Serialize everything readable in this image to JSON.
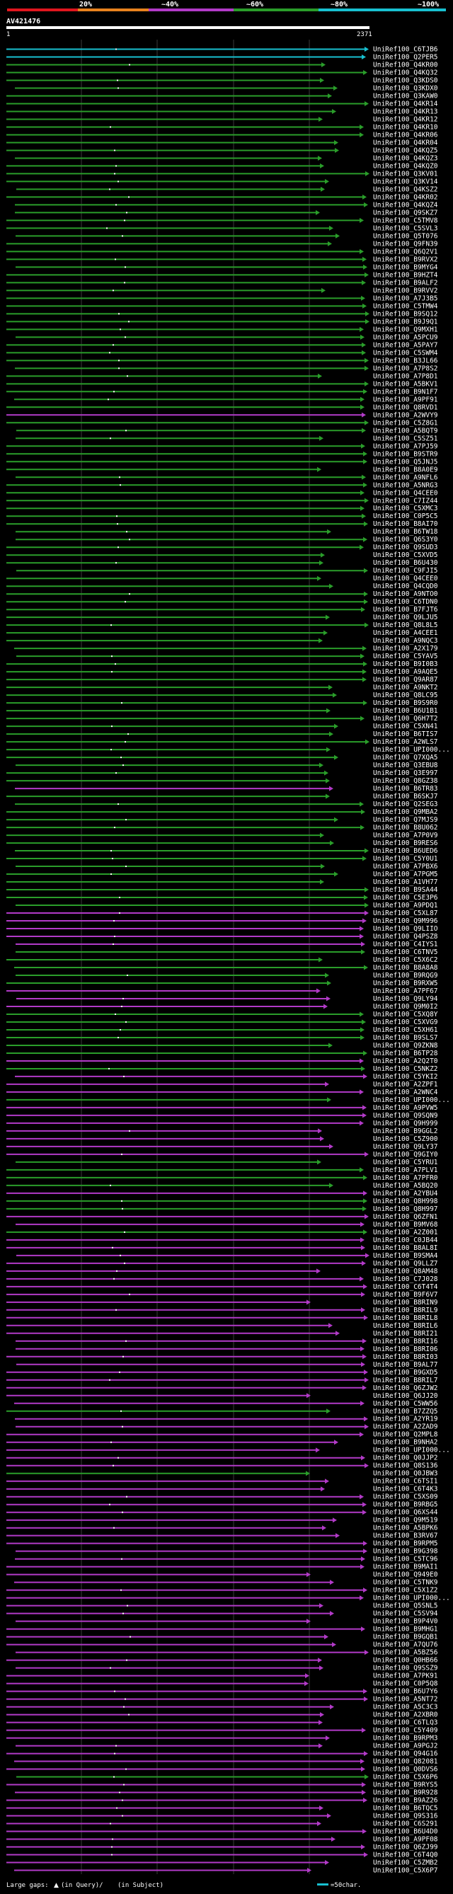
{
  "chart_data": {
    "type": "alignment-graphic",
    "query_id": "AV421476",
    "query_start": "1",
    "query_end": "2371",
    "identity_legend": [
      {
        "label": "20%",
        "color": "#e0161e"
      },
      {
        "label": "~40%",
        "color": "#e8821e"
      },
      {
        "label": "~60%",
        "color": "#b23ac8"
      },
      {
        "label": "~80%",
        "color": "#2a9d2a"
      },
      {
        "label": "~100%",
        "color": "#18c0d0"
      }
    ],
    "footer": {
      "gaps_text": "Large gaps:",
      "gaps_query": "(in Query)/",
      "gaps_subject": "(in Subject)",
      "scale_text": "=50char."
    },
    "hits": [
      {
        "label": "UniRef100_C6TJB6",
        "c": "c"
      },
      {
        "label": "UniRef100_Q2PER5",
        "c": "c"
      },
      {
        "label": "UniRef100_Q4KR00",
        "c": "g"
      },
      {
        "label": "UniRef100_Q4KQ32",
        "c": "g"
      },
      {
        "label": "UniRef100_Q3KDS0",
        "c": "g"
      },
      {
        "label": "UniRef100_Q3KDX0",
        "c": "g"
      },
      {
        "label": "UniRef100_Q3KAW0",
        "c": "g"
      },
      {
        "label": "UniRef100_Q4KR14",
        "c": "g"
      },
      {
        "label": "UniRef100_Q4KR13",
        "c": "g"
      },
      {
        "label": "UniRef100_Q4KR12",
        "c": "g"
      },
      {
        "label": "UniRef100_Q4KR10",
        "c": "g"
      },
      {
        "label": "UniRef100_Q4KR06",
        "c": "g"
      },
      {
        "label": "UniRef100_Q4KR04",
        "c": "g"
      },
      {
        "label": "UniRef100_Q4KQZ5",
        "c": "g"
      },
      {
        "label": "UniRef100_Q4KQZ3",
        "c": "g"
      },
      {
        "label": "UniRef100_Q4KQZ0",
        "c": "g"
      },
      {
        "label": "UniRef100_Q3KV01",
        "c": "g"
      },
      {
        "label": "UniRef100_Q3KV14",
        "c": "g"
      },
      {
        "label": "UniRef100_Q4KSZ2",
        "c": "g"
      },
      {
        "label": "UniRef100_Q4KR02",
        "c": "g"
      },
      {
        "label": "UniRef100_Q4KQZ4",
        "c": "g"
      },
      {
        "label": "UniRef100_Q9SKZ7",
        "c": "g"
      },
      {
        "label": "UniRef100_C5TMV8",
        "c": "g"
      },
      {
        "label": "UniRef100_C5SVL3",
        "c": "g"
      },
      {
        "label": "UniRef100_Q5T076",
        "c": "g"
      },
      {
        "label": "UniRef100_Q9FN39",
        "c": "g"
      },
      {
        "label": "UniRef100_Q6Q2V1",
        "c": "g"
      },
      {
        "label": "UniRef100_B9RVX2",
        "c": "g"
      },
      {
        "label": "UniRef100_B9MYG4",
        "c": "g"
      },
      {
        "label": "UniRef100_B9HZT4",
        "c": "g"
      },
      {
        "label": "UniRef100_B9ALF2",
        "c": "g"
      },
      {
        "label": "UniRef100_B9RVV2",
        "c": "g"
      },
      {
        "label": "UniRef100_A7J3B5",
        "c": "g"
      },
      {
        "label": "UniRef100_C5TMW4",
        "c": "g"
      },
      {
        "label": "UniRef100_B9SQ12",
        "c": "g"
      },
      {
        "label": "UniRef100_B9J9Q1",
        "c": "g"
      },
      {
        "label": "UniRef100_Q9MXH1",
        "c": "g"
      },
      {
        "label": "UniRef100_A5PCU9",
        "c": "g"
      },
      {
        "label": "UniRef100_A5PAY7",
        "c": "g"
      },
      {
        "label": "UniRef100_C5SWM4",
        "c": "g"
      },
      {
        "label": "UniRef100_B3JL66",
        "c": "g"
      },
      {
        "label": "UniRef100_A7P8S2",
        "c": "g"
      },
      {
        "label": "UniRef100_A7P8D1",
        "c": "g"
      },
      {
        "label": "UniRef100_A5BKV1",
        "c": "g"
      },
      {
        "label": "UniRef100_B9N1F7",
        "c": "g"
      },
      {
        "label": "UniRef100_A9PF91",
        "c": "g"
      },
      {
        "label": "UniRef100_Q8RVD1",
        "c": "g"
      },
      {
        "label": "UniRef100_A2WVY9",
        "c": "p"
      },
      {
        "label": "UniRef100_C5Z8G1",
        "c": "g"
      },
      {
        "label": "UniRef100_A5BQT9",
        "c": "g"
      },
      {
        "label": "UniRef100_C5SZ51",
        "c": "g"
      },
      {
        "label": "UniRef100_A7PJ59",
        "c": "g"
      },
      {
        "label": "UniRef100_B9STR9",
        "c": "g"
      },
      {
        "label": "UniRef100_Q5JNJ5",
        "c": "g"
      },
      {
        "label": "UniRef100_B8A0E9",
        "c": "g"
      },
      {
        "label": "UniRef100_A9NFL6",
        "c": "g"
      },
      {
        "label": "UniRef100_A5NRG3",
        "c": "g"
      },
      {
        "label": "UniRef100_Q4CEE0",
        "c": "g"
      },
      {
        "label": "UniRef100_C7IZ44",
        "c": "g"
      },
      {
        "label": "UniRef100_C5XMC3",
        "c": "g"
      },
      {
        "label": "UniRef100_C0P5C5",
        "c": "g"
      },
      {
        "label": "UniRef100_B8AI70",
        "c": "g"
      },
      {
        "label": "UniRef100_B6TW18",
        "c": "g"
      },
      {
        "label": "UniRef100_Q6S3Y0",
        "c": "g"
      },
      {
        "label": "UniRef100_Q9SUD3",
        "c": "g"
      },
      {
        "label": "UniRef100_C5XVD5",
        "c": "g"
      },
      {
        "label": "UniRef100_B6U430",
        "c": "g"
      },
      {
        "label": "UniRef100_C9FJI5",
        "c": "g"
      },
      {
        "label": "UniRef100_Q4CEE0",
        "c": "g"
      },
      {
        "label": "UniRef100_Q4CQD0",
        "c": "g"
      },
      {
        "label": "UniRef100_A9NTO0",
        "c": "g"
      },
      {
        "label": "UniRef100_C6TDN0",
        "c": "g"
      },
      {
        "label": "UniRef100_B7FJT6",
        "c": "g"
      },
      {
        "label": "UniRef100_Q9LJU5",
        "c": "g"
      },
      {
        "label": "UniRef100_Q8L8L5",
        "c": "g"
      },
      {
        "label": "UniRef100_A4CEE1",
        "c": "g"
      },
      {
        "label": "UniRef100_A9NQC3",
        "c": "g"
      },
      {
        "label": "UniRef100_A2X179",
        "c": "g"
      },
      {
        "label": "UniRef100_C5YAV5",
        "c": "g"
      },
      {
        "label": "UniRef100_B9I0B3",
        "c": "g"
      },
      {
        "label": "UniRef100_A9AQE5",
        "c": "g"
      },
      {
        "label": "UniRef100_Q9AR87",
        "c": "g"
      },
      {
        "label": "UniRef100_A9NKT2",
        "c": "g"
      },
      {
        "label": "UniRef100_Q8LC95",
        "c": "g"
      },
      {
        "label": "UniRef100_B9S9R0",
        "c": "g"
      },
      {
        "label": "UniRef100_B6U1B1",
        "c": "g"
      },
      {
        "label": "UniRef100_Q6H7T2",
        "c": "g"
      },
      {
        "label": "UniRef100_C5XN41",
        "c": "g"
      },
      {
        "label": "UniRef100_B6TIS7",
        "c": "g"
      },
      {
        "label": "UniRef100_A2WLS7",
        "c": "g"
      },
      {
        "label": "UniRef100_UPI000...",
        "c": "g"
      },
      {
        "label": "UniRef100_Q7XQA5",
        "c": "g"
      },
      {
        "label": "UniRef100_Q3EBU8",
        "c": "g"
      },
      {
        "label": "UniRef100_Q3E997",
        "c": "g"
      },
      {
        "label": "UniRef100_Q8GZ38",
        "c": "g"
      },
      {
        "label": "UniRef100_B6TR83",
        "c": "p"
      },
      {
        "label": "UniRef100_B6SKJ7",
        "c": "g"
      },
      {
        "label": "UniRef100_Q2SEG3",
        "c": "g"
      },
      {
        "label": "UniRef100_Q9MBA2",
        "c": "g"
      },
      {
        "label": "UniRef100_Q7MJS9",
        "c": "g"
      },
      {
        "label": "UniRef100_B8U062",
        "c": "g"
      },
      {
        "label": "UniRef100_A7P0V9",
        "c": "g"
      },
      {
        "label": "UniRef100_B9RES6",
        "c": "g"
      },
      {
        "label": "UniRef100_B6UED6",
        "c": "g"
      },
      {
        "label": "UniRef100_C5Y0U1",
        "c": "g"
      },
      {
        "label": "UniRef100_A7PBX6",
        "c": "g"
      },
      {
        "label": "UniRef100_A7PGM5",
        "c": "g"
      },
      {
        "label": "UniRef100_A1VH77",
        "c": "g"
      },
      {
        "label": "UniRef100_B9SA44",
        "c": "g"
      },
      {
        "label": "UniRef100_C5E3P6",
        "c": "g"
      },
      {
        "label": "UniRef100_A9PDQ1",
        "c": "g"
      },
      {
        "label": "UniRef100_C5XL87",
        "c": "p"
      },
      {
        "label": "UniRef100_Q9M996",
        "c": "p"
      },
      {
        "label": "UniRef100_Q9LIIO",
        "c": "p"
      },
      {
        "label": "UniRef100_Q4PSZ8",
        "c": "p"
      },
      {
        "label": "UniRef100_C4IYS1",
        "c": "p"
      },
      {
        "label": "UniRef100_C6TNV5",
        "c": "g"
      },
      {
        "label": "UniRef100_C5X6C2",
        "c": "g"
      },
      {
        "label": "UniRef100_B8A8A8",
        "c": "g"
      },
      {
        "label": "UniRef100_B9RQG9",
        "c": "g"
      },
      {
        "label": "UniRef100_B9RXW5",
        "c": "g"
      },
      {
        "label": "UniRef100_A7PF67",
        "c": "p"
      },
      {
        "label": "UniRef100_Q9LY94",
        "c": "p"
      },
      {
        "label": "UniRef100_Q9M0I2",
        "c": "p"
      },
      {
        "label": "UniRef100_C5XQ8Y",
        "c": "g"
      },
      {
        "label": "UniRef100_C5XVG9",
        "c": "g"
      },
      {
        "label": "UniRef100_C5XH61",
        "c": "g"
      },
      {
        "label": "UniRef100_B9SLS7",
        "c": "g"
      },
      {
        "label": "UniRef100_Q9ZKN8",
        "c": "g"
      },
      {
        "label": "UniRef100_B6TP28",
        "c": "g"
      },
      {
        "label": "UniRef100_A2Q2T0",
        "c": "p"
      },
      {
        "label": "UniRef100_C5NKZ2",
        "c": "g"
      },
      {
        "label": "UniRef100_C5YKI2",
        "c": "p"
      },
      {
        "label": "UniRef100_A2ZPF1",
        "c": "p"
      },
      {
        "label": "UniRef100_A2WNC4",
        "c": "p"
      },
      {
        "label": "UniRef100_UPI000...",
        "c": "g"
      },
      {
        "label": "UniRef100_A9PVW5",
        "c": "p"
      },
      {
        "label": "UniRef100_Q9SQN9",
        "c": "p"
      },
      {
        "label": "UniRef100_Q9H999",
        "c": "p"
      },
      {
        "label": "UniRef100_B9GGL2",
        "c": "p"
      },
      {
        "label": "UniRef100_C5Z900",
        "c": "p"
      },
      {
        "label": "UniRef100_Q9LY37",
        "c": "p"
      },
      {
        "label": "UniRef100_Q9GIY0",
        "c": "p"
      },
      {
        "label": "UniRef100_C5YRU1",
        "c": "g"
      },
      {
        "label": "UniRef100_A7PLV1",
        "c": "g"
      },
      {
        "label": "UniRef100_A7PFR0",
        "c": "g"
      },
      {
        "label": "UniRef100_A5BQ20",
        "c": "g"
      },
      {
        "label": "UniRef100_A2YBU4",
        "c": "p"
      },
      {
        "label": "UniRef100_Q8H998",
        "c": "g"
      },
      {
        "label": "UniRef100_Q8H997",
        "c": "g"
      },
      {
        "label": "UniRef100_Q6ZFN1",
        "c": "p"
      },
      {
        "label": "UniRef100_B9MV68",
        "c": "p"
      },
      {
        "label": "UniRef100_A2Z001",
        "c": "g"
      },
      {
        "label": "UniRef100_C0JB44",
        "c": "p"
      },
      {
        "label": "UniRef100_B8AL8I",
        "c": "p"
      },
      {
        "label": "UniRef100_B9SMA4",
        "c": "p"
      },
      {
        "label": "UniRef100_Q9LLZ7",
        "c": "p"
      },
      {
        "label": "UniRef100_Q8AM48",
        "c": "p"
      },
      {
        "label": "UniRef100_C7J028",
        "c": "p"
      },
      {
        "label": "UniRef100_C6T4T4",
        "c": "p"
      },
      {
        "label": "UniRef100_B9F6V7",
        "c": "p"
      },
      {
        "label": "UniRef100_B8RIN9",
        "c": "p"
      },
      {
        "label": "UniRef100_B8RIL9",
        "c": "p"
      },
      {
        "label": "UniRef100_B8RIL8",
        "c": "p"
      },
      {
        "label": "UniRef100_B8RIL6",
        "c": "p"
      },
      {
        "label": "UniRef100_B8RI21",
        "c": "p"
      },
      {
        "label": "UniRef100_B8RI16",
        "c": "p"
      },
      {
        "label": "UniRef100_B8RI06",
        "c": "p"
      },
      {
        "label": "UniRef100_B8RI03",
        "c": "p"
      },
      {
        "label": "UniRef100_B9AL77",
        "c": "p"
      },
      {
        "label": "UniRef100_B9GXD5",
        "c": "p"
      },
      {
        "label": "UniRef100_B8RIL7",
        "c": "p"
      },
      {
        "label": "UniRef100_Q6ZJW2",
        "c": "p"
      },
      {
        "label": "UniRef100_Q6JJ20",
        "c": "p"
      },
      {
        "label": "UniRef100_C5WW56",
        "c": "p"
      },
      {
        "label": "UniRef100_B7ZZQ5",
        "c": "g"
      },
      {
        "label": "UniRef100_A2YR19",
        "c": "p"
      },
      {
        "label": "UniRef100_A2ZAD9",
        "c": "p"
      },
      {
        "label": "UniRef100_Q2MPL8",
        "c": "p"
      },
      {
        "label": "UniRef100_B9NHA2",
        "c": "p"
      },
      {
        "label": "UniRef100_UPI000...",
        "c": "p"
      },
      {
        "label": "UniRef100_Q0JJP2",
        "c": "p"
      },
      {
        "label": "UniRef100_Q8S136",
        "c": "p"
      },
      {
        "label": "UniRef100_Q0JBW3",
        "c": "g"
      },
      {
        "label": "UniRef100_C6TSI1",
        "c": "p"
      },
      {
        "label": "UniRef100_C6T4K3",
        "c": "p"
      },
      {
        "label": "UniRef100_C5XS09",
        "c": "p"
      },
      {
        "label": "UniRef100_B9RBG5",
        "c": "p"
      },
      {
        "label": "UniRef100_Q6XS44",
        "c": "p"
      },
      {
        "label": "UniRef100_Q9M519",
        "c": "p"
      },
      {
        "label": "UniRef100_A5BPK6",
        "c": "p"
      },
      {
        "label": "UniRef100_B3RV67",
        "c": "p"
      },
      {
        "label": "UniRef100_B9RPM5",
        "c": "p"
      },
      {
        "label": "UniRef100_B9G398",
        "c": "p"
      },
      {
        "label": "UniRef100_C5TC96",
        "c": "p"
      },
      {
        "label": "UniRef100_B9MAI1",
        "c": "p"
      },
      {
        "label": "UniRef100_Q949E0",
        "c": "p"
      },
      {
        "label": "UniRef100_C5TNK9",
        "c": "p"
      },
      {
        "label": "UniRef100_C5X1Z2",
        "c": "p"
      },
      {
        "label": "UniRef100_UPI000...",
        "c": "p"
      },
      {
        "label": "UniRef100_Q5SNL5",
        "c": "p"
      },
      {
        "label": "UniRef100_C5SV94",
        "c": "p"
      },
      {
        "label": "UniRef100_B9P4V0",
        "c": "p"
      },
      {
        "label": "UniRef100_B9MHG1",
        "c": "p"
      },
      {
        "label": "UniRef100_B9GQB1",
        "c": "p"
      },
      {
        "label": "UniRef100_A7QU76",
        "c": "p"
      },
      {
        "label": "UniRef100_A5BZ56",
        "c": "p"
      },
      {
        "label": "UniRef100_Q0HB66",
        "c": "p"
      },
      {
        "label": "UniRef100_Q9SSZ9",
        "c": "p"
      },
      {
        "label": "UniRef100_A7PK91",
        "c": "p"
      },
      {
        "label": "UniRef100_C0P5Q8",
        "c": "p"
      },
      {
        "label": "UniRef100_B6U7Y6",
        "c": "p"
      },
      {
        "label": "UniRef100_A5NT72",
        "c": "p"
      },
      {
        "label": "UniRef100_A5C3C3",
        "c": "p"
      },
      {
        "label": "UniRef100_A2XBR0",
        "c": "p"
      },
      {
        "label": "UniRef100_C6TLQ3",
        "c": "p"
      },
      {
        "label": "UniRef100_C5Y409",
        "c": "p"
      },
      {
        "label": "UniRef100_B9RPM3",
        "c": "p"
      },
      {
        "label": "UniRef100_A9PGJ2",
        "c": "p"
      },
      {
        "label": "UniRef100_Q94G16",
        "c": "p"
      },
      {
        "label": "UniRef100_Q82081",
        "c": "p"
      },
      {
        "label": "UniRef100_Q0DVS6",
        "c": "p"
      },
      {
        "label": "UniRef100_C5X6P6",
        "c": "g"
      },
      {
        "label": "UniRef100_B9RYS5",
        "c": "p"
      },
      {
        "label": "UniRef100_B9R928",
        "c": "p"
      },
      {
        "label": "UniRef100_B9AZ26",
        "c": "p"
      },
      {
        "label": "UniRef100_B6TQC5",
        "c": "p"
      },
      {
        "label": "UniRef100_Q9S316",
        "c": "p"
      },
      {
        "label": "UniRef100_C6S291",
        "c": "p"
      },
      {
        "label": "UniRef100_B6U4D0",
        "c": "p"
      },
      {
        "label": "UniRef100_A9PF08",
        "c": "p"
      },
      {
        "label": "UniRef100_Q6ZJ99",
        "c": "p"
      },
      {
        "label": "UniRef100_C6T4Q0",
        "c": "p"
      },
      {
        "label": "UniRef100_C5ZMB2",
        "c": "p"
      },
      {
        "label": "UniRef100_C5X6P7",
        "c": "p"
      }
    ]
  }
}
